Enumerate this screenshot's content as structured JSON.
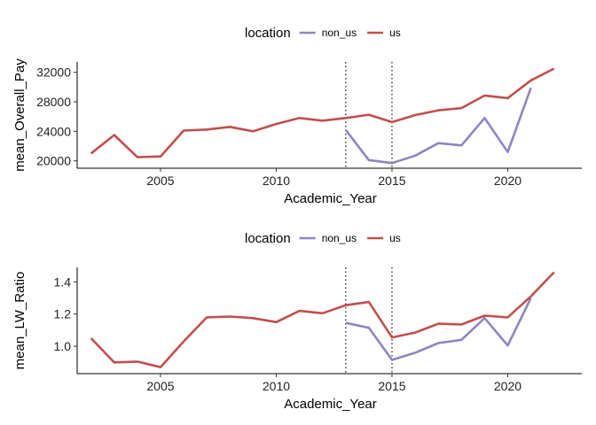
{
  "chart_data": [
    {
      "type": "line",
      "xlabel": "Academic_Year",
      "ylabel": "mean_Overall_Pay",
      "xlim": [
        2001.4,
        2023.2
      ],
      "ylim": [
        19000,
        33400
      ],
      "x_ticks": [
        2005,
        2010,
        2015,
        2020
      ],
      "y_ticks": [
        20000,
        24000,
        28000,
        32000
      ],
      "grid": false,
      "legend": {
        "title": "location",
        "position": "top"
      },
      "vlines": [
        2013,
        2015
      ],
      "series": [
        {
          "name": "non_us",
          "color": "#8b87c1",
          "x": [
            2013,
            2014,
            2015,
            2016,
            2017,
            2018,
            2019,
            2020,
            2021
          ],
          "values": [
            24200,
            20100,
            19700,
            20700,
            22400,
            22100,
            25800,
            21200,
            29900
          ]
        },
        {
          "name": "us",
          "color": "#c0504d",
          "x": [
            2002,
            2003,
            2004,
            2005,
            2006,
            2007,
            2008,
            2009,
            2010,
            2011,
            2012,
            2013,
            2014,
            2015,
            2016,
            2017,
            2018,
            2019,
            2020,
            2021,
            2022
          ],
          "values": [
            21000,
            23500,
            20500,
            20600,
            24100,
            24250,
            24600,
            24000,
            25000,
            25800,
            25450,
            25800,
            26250,
            25250,
            26200,
            26850,
            27150,
            28850,
            28500,
            30900,
            32500
          ]
        }
      ]
    },
    {
      "type": "line",
      "xlabel": "Academic_Year",
      "ylabel": "mean_LW_Ratio",
      "xlim": [
        2001.4,
        2023.2
      ],
      "ylim": [
        0.83,
        1.49
      ],
      "x_ticks": [
        2005,
        2010,
        2015,
        2020
      ],
      "y_ticks": [
        1.0,
        1.2,
        1.4
      ],
      "y_tick_labels": [
        "1.0",
        "1.2",
        "1.4"
      ],
      "grid": false,
      "legend": {
        "title": "location",
        "position": "top"
      },
      "vlines": [
        2013,
        2015
      ],
      "series": [
        {
          "name": "non_us",
          "color": "#8b87c1",
          "x": [
            2013,
            2014,
            2015,
            2016,
            2017,
            2018,
            2019,
            2020,
            2021
          ],
          "values": [
            1.145,
            1.115,
            0.915,
            0.96,
            1.02,
            1.04,
            1.175,
            1.005,
            1.3
          ]
        },
        {
          "name": "us",
          "color": "#c0504d",
          "x": [
            2002,
            2003,
            2004,
            2005,
            2006,
            2007,
            2008,
            2009,
            2010,
            2011,
            2012,
            2013,
            2014,
            2015,
            2016,
            2017,
            2018,
            2019,
            2020,
            2021,
            2022
          ],
          "values": [
            1.05,
            0.9,
            0.905,
            0.87,
            1.03,
            1.18,
            1.185,
            1.175,
            1.15,
            1.22,
            1.205,
            1.255,
            1.275,
            1.055,
            1.085,
            1.14,
            1.135,
            1.19,
            1.18,
            1.31,
            1.46
          ]
        }
      ]
    }
  ]
}
